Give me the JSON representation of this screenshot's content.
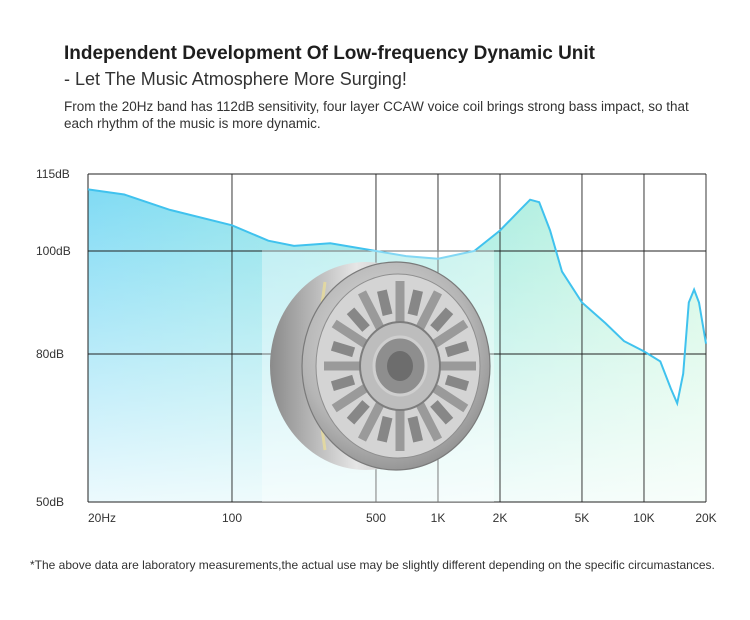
{
  "header": {
    "title": "Independent Development Of Low-frequency Dynamic Unit",
    "subtitle": "- Let The Music Atmosphere More Surging!",
    "description": "From the 20Hz band has 112dB sensitivity, four layer CCAW voice coil brings strong bass impact, so that each rhythm of the music is more dynamic."
  },
  "footnote": "*The above data are laboratory measurements,the actual use may be slightly different depending on the specific circumastances.",
  "colors": {
    "curve_line": "#40c2ee",
    "fill_left": "#7ad9f4",
    "fill_right": "#a6f0c8",
    "grid": "#222222",
    "axis_text": "#333333"
  },
  "image": {
    "name": "dynamic-driver-unit"
  },
  "chart_data": {
    "type": "area",
    "title": "",
    "xlabel": "",
    "ylabel": "",
    "x_scale": "log",
    "grid": true,
    "legend": "none",
    "x_ticks": [
      {
        "value": 20,
        "label": "20Hz"
      },
      {
        "value": 100,
        "label": "100"
      },
      {
        "value": 500,
        "label": "500"
      },
      {
        "value": 1000,
        "label": "1K"
      },
      {
        "value": 2000,
        "label": "2K"
      },
      {
        "value": 5000,
        "label": "5K"
      },
      {
        "value": 10000,
        "label": "10K"
      },
      {
        "value": 20000,
        "label": "20K"
      }
    ],
    "y_ticks": [
      {
        "value": 115,
        "label": "115dB"
      },
      {
        "value": 100,
        "label": "100dB"
      },
      {
        "value": 80,
        "label": "80dB"
      },
      {
        "value": 50,
        "label": "50dB"
      }
    ],
    "series": [
      {
        "points": [
          [
            20,
            112
          ],
          [
            30,
            111
          ],
          [
            50,
            108
          ],
          [
            100,
            105
          ],
          [
            150,
            102
          ],
          [
            200,
            101
          ],
          [
            300,
            101.5
          ],
          [
            500,
            100
          ],
          [
            700,
            99
          ],
          [
            1000,
            98.5
          ],
          [
            1500,
            100
          ],
          [
            2000,
            104
          ],
          [
            2500,
            108
          ],
          [
            2800,
            110
          ],
          [
            3100,
            109.5
          ],
          [
            3500,
            104
          ],
          [
            4000,
            96
          ],
          [
            5000,
            90
          ],
          [
            6500,
            86
          ],
          [
            8000,
            82.5
          ],
          [
            10000,
            80.5
          ],
          [
            12000,
            78.5
          ],
          [
            13500,
            73
          ],
          [
            14500,
            70
          ],
          [
            15500,
            76
          ],
          [
            16500,
            90
          ],
          [
            17500,
            92.5
          ],
          [
            18500,
            90
          ],
          [
            20000,
            82
          ]
        ]
      }
    ]
  }
}
